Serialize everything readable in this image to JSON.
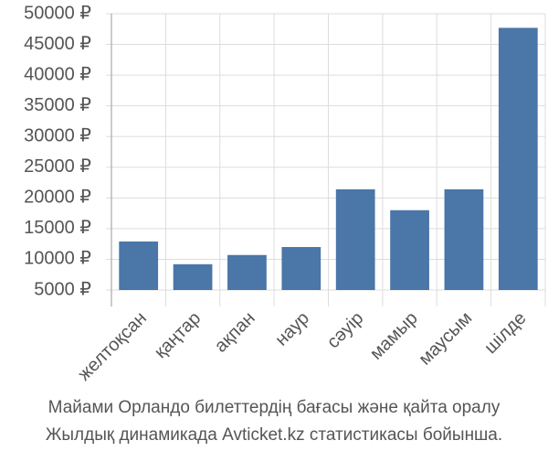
{
  "chart_data": {
    "type": "bar",
    "title": "Майами Орландо билеттердің бағасы және қайта оралу",
    "subtitle": "Жылдық динамикада Avticket.kz статистикасы бойынша.",
    "categories": [
      "желтоқсан",
      "қаңтар",
      "ақпан",
      "наур",
      "сәуір",
      "мамыр",
      "маусым",
      "шілде"
    ],
    "values": [
      12900,
      9200,
      10700,
      12000,
      21400,
      18000,
      21400,
      47700
    ],
    "color": "#4a76a8",
    "ylim": [
      5000,
      50000
    ],
    "yticks": [
      {
        "value": 5000,
        "label": "5000 ₽"
      },
      {
        "value": 10000,
        "label": "10000 ₽"
      },
      {
        "value": 15000,
        "label": "15000 ₽"
      },
      {
        "value": 20000,
        "label": "20000 ₽"
      },
      {
        "value": 25000,
        "label": "25000 ₽"
      },
      {
        "value": 30000,
        "label": "30000 ₽"
      },
      {
        "value": 35000,
        "label": "35000 ₽"
      },
      {
        "value": 40000,
        "label": "40000 ₽"
      },
      {
        "value": 45000,
        "label": "45000 ₽"
      },
      {
        "value": 50000,
        "label": "50000 ₽"
      }
    ],
    "grid": true
  }
}
